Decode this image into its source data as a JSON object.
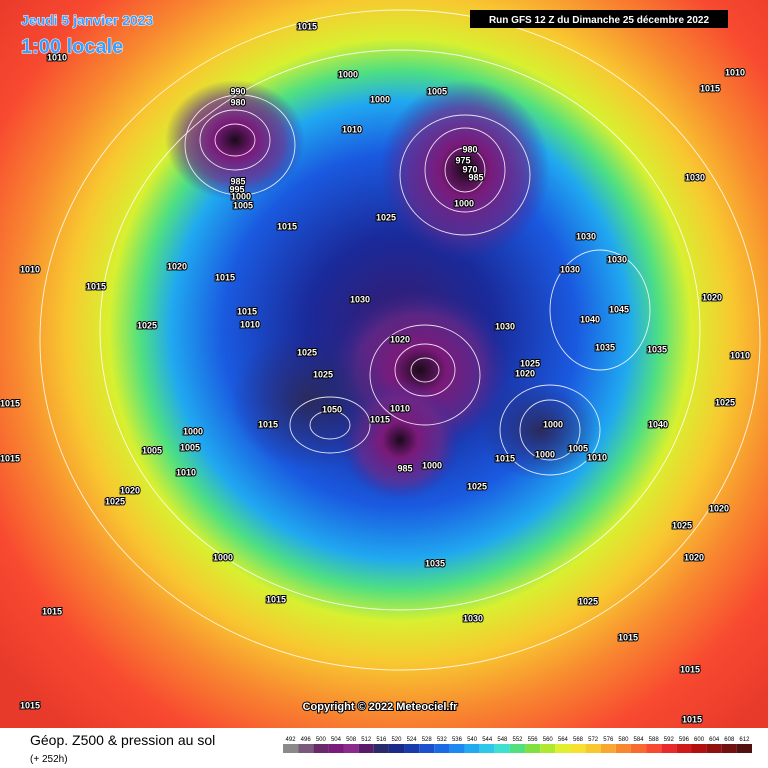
{
  "header": {
    "date": "Jeudi 5 janvier 2023",
    "time": "1:00 locale",
    "run": "Run GFS 12 Z du Dimanche 25 décembre 2022"
  },
  "copyright": "Copyright © 2022 Meteociel.fr",
  "footer": {
    "title": "Géop. Z500 & pression au sol",
    "lead": "(+ 252h)"
  },
  "colorbar": {
    "values": [
      492,
      496,
      500,
      504,
      508,
      512,
      516,
      520,
      524,
      528,
      532,
      536,
      540,
      544,
      548,
      552,
      556,
      560,
      564,
      568,
      572,
      576,
      580,
      584,
      588,
      592,
      596,
      600,
      604,
      608,
      612
    ],
    "colors": [
      "#8a8a8a",
      "#7a5a7a",
      "#6a2a6a",
      "#7a1a7a",
      "#8a2a8a",
      "#5a1a6a",
      "#2a2a6a",
      "#1a2a8a",
      "#1a3aaa",
      "#1a50cc",
      "#1a6ae6",
      "#1a8af0",
      "#20aaf0",
      "#30c8e8",
      "#40e0d0",
      "#50e080",
      "#80e040",
      "#b0e830",
      "#e0f030",
      "#f8e030",
      "#f8c830",
      "#f8a830",
      "#f88830",
      "#f86a30",
      "#f84a30",
      "#e82a2a",
      "#d01a1a",
      "#b01010",
      "#901010",
      "#701010",
      "#501010"
    ]
  },
  "isobar_labels": [
    1015,
    1010,
    1000,
    1005,
    1000,
    990,
    980,
    1010,
    980,
    975,
    970,
    985,
    985,
    995,
    1000,
    1005,
    1000,
    1025,
    1015,
    1030,
    1030,
    1030,
    1020,
    1010,
    1015,
    1015,
    1030,
    1045,
    1040,
    1030,
    1025,
    1015,
    1010,
    1020,
    1035,
    1035,
    1025,
    1025,
    1020,
    1025,
    1015,
    1010,
    1015,
    1050,
    1015,
    1000,
    1000,
    1040,
    1005,
    1005,
    1005,
    1010,
    1000,
    1015,
    1015,
    1010,
    1000,
    985,
    1025,
    1020,
    1025,
    1020,
    1025,
    1020,
    1000,
    1035,
    1015,
    1025,
    1030,
    1015,
    1015,
    1015,
    1015,
    1015,
    1010,
    1015,
    1030,
    1020,
    1010,
    1025
  ]
}
